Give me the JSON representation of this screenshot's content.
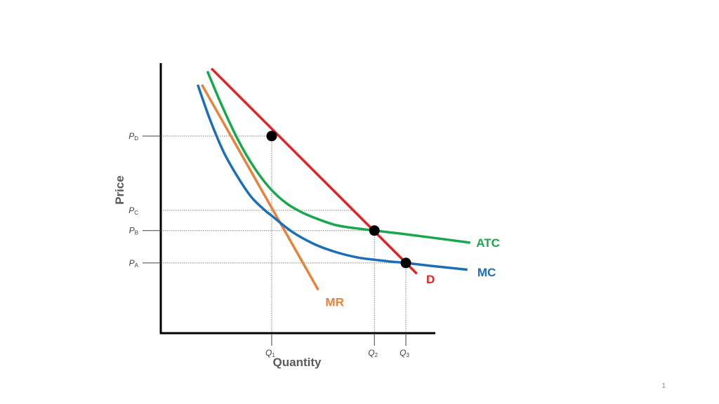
{
  "page_number": "1",
  "chart_data": {
    "type": "line",
    "title": "",
    "xlabel": "Quantity",
    "ylabel": "Price",
    "grid": false,
    "legend": "none",
    "xlim": [
      0,
      10
    ],
    "ylim": [
      0,
      10
    ],
    "x_ticks": [
      {
        "main": "Q",
        "sub": "1",
        "value": 4.05
      },
      {
        "main": "Q",
        "sub": "2",
        "value": 7.8
      },
      {
        "main": "Q",
        "sub": "3",
        "value": 8.95
      }
    ],
    "y_ticks": [
      {
        "main": "P",
        "sub": "D",
        "value": 7.3
      },
      {
        "main": "P",
        "sub": "C",
        "value": 4.55,
        "tick_mark": false
      },
      {
        "main": "P",
        "sub": "B",
        "value": 3.8
      },
      {
        "main": "P",
        "sub": "A",
        "value": 2.6
      }
    ],
    "series": [
      {
        "name": "D",
        "color": "#e8201f",
        "x": [
          1.85,
          9.35
        ],
        "y": [
          9.8,
          2.2
        ]
      },
      {
        "name": "MR",
        "color": "#e8823a",
        "x": [
          1.5,
          5.75
        ],
        "y": [
          9.2,
          1.6
        ]
      },
      {
        "name": "ATC",
        "color": "#17a84b",
        "x": [
          1.7,
          2.2,
          2.8,
          3.4,
          4.0,
          4.6,
          5.2,
          5.8,
          6.4,
          7.0,
          7.8,
          8.8,
          9.8,
          11.3
        ],
        "y": [
          9.7,
          8.5,
          7.2,
          6.15,
          5.35,
          4.8,
          4.45,
          4.2,
          4.0,
          3.9,
          3.8,
          3.68,
          3.55,
          3.35
        ]
      },
      {
        "name": "MC",
        "color": "#1a6fb8",
        "x": [
          1.35,
          1.8,
          2.3,
          2.8,
          3.3,
          3.8,
          4.05,
          4.8,
          5.6,
          6.4,
          7.2,
          7.8,
          8.4,
          8.95,
          9.8,
          11.2
        ],
        "y": [
          9.2,
          7.9,
          6.7,
          5.8,
          5.05,
          4.55,
          4.35,
          3.75,
          3.3,
          3.0,
          2.8,
          2.72,
          2.65,
          2.6,
          2.5,
          2.35
        ]
      }
    ],
    "points": [
      {
        "label": "D at Q1",
        "x": 4.05,
        "y": 7.3
      },
      {
        "label": "ATC = D",
        "x": 7.8,
        "y": 3.8
      },
      {
        "label": "MC = D",
        "x": 8.95,
        "y": 2.6
      }
    ],
    "curve_labels": [
      {
        "text": "D",
        "color": "#e8201f",
        "x": 9.85,
        "y": 1.85
      },
      {
        "text": "MR",
        "color": "#e8823a",
        "x": 6.35,
        "y": 1.0
      },
      {
        "text": "ATC",
        "color": "#17a84b",
        "x": 11.95,
        "y": 3.2
      },
      {
        "text": "MC",
        "color": "#1a6fb8",
        "x": 11.9,
        "y": 2.1
      }
    ]
  }
}
